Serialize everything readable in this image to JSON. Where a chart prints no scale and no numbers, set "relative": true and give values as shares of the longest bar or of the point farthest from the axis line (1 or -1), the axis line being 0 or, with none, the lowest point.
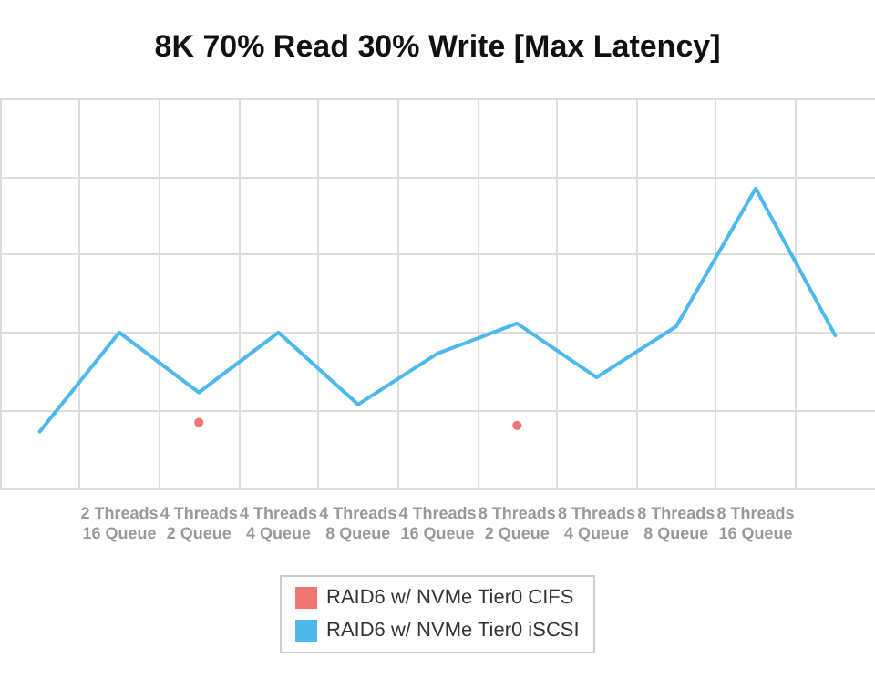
{
  "chart_data": {
    "type": "line",
    "title": "8K 70% Read 30% Write [Max Latency]",
    "relative": true,
    "grid": true,
    "legend": "bottom",
    "line_style": "solid",
    "categories": [
      null,
      "2 Threads\n16 Queue",
      "4 Threads\n2 Queue",
      "4 Threads\n4 Queue",
      "4 Threads\n8 Queue",
      "4 Threads\n16 Queue",
      "8 Threads\n2 Queue",
      "8 Threads\n4 Queue",
      "8 Threads\n8 Queue",
      "8 Threads\n16 Queue",
      null
    ],
    "series": [
      {
        "name": "RAID6 w/ NVMe Tier0 CIFS",
        "type": "scatter",
        "marker": "circle",
        "color": "#ee5253",
        "values": [
          null,
          null,
          0.22,
          null,
          null,
          null,
          0.21,
          null,
          null,
          null,
          null
        ]
      },
      {
        "name": "RAID6 w/ NVMe Tier0 iSCSI",
        "marker": "none",
        "color": "#4db8ec",
        "values": [
          0.19,
          0.52,
          0.32,
          0.52,
          0.28,
          0.45,
          0.55,
          0.37,
          0.54,
          1,
          0.51
        ]
      }
    ]
  }
}
